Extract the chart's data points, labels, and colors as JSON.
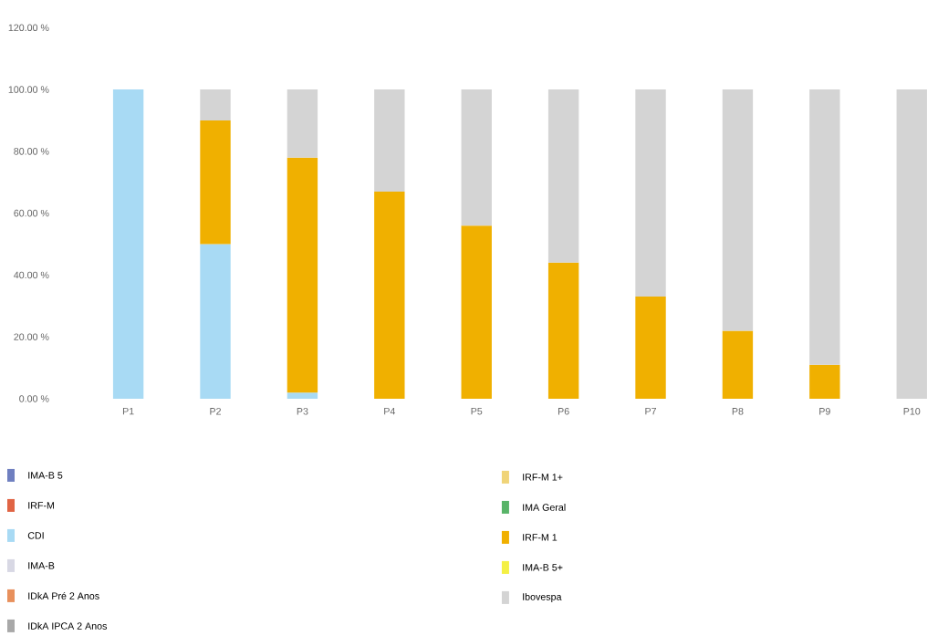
{
  "chart_data": {
    "type": "bar",
    "stacked": true,
    "legend": "bottom",
    "categories": [
      "P1",
      "P2",
      "P3",
      "P4",
      "P5",
      "P6",
      "P7",
      "P8",
      "P9",
      "P10"
    ],
    "ylim": [
      0,
      120
    ],
    "yticks": [
      {
        "value": 0,
        "label": "0.00 %"
      },
      {
        "value": 20,
        "label": "20.00 %"
      },
      {
        "value": 40,
        "label": "40.00 %"
      },
      {
        "value": 60,
        "label": "60.00 %"
      },
      {
        "value": 80,
        "label": "80.00 %"
      },
      {
        "value": 100,
        "label": "100.00 %"
      },
      {
        "value": 120,
        "label": "120.00 %"
      }
    ],
    "series": [
      {
        "name": "IMA-B 5",
        "color": "#6f7fc0",
        "values": [
          null,
          null,
          null,
          null,
          null,
          null,
          null,
          null,
          null,
          null
        ]
      },
      {
        "name": "IRF-M",
        "color": "#e06444",
        "values": [
          null,
          null,
          null,
          null,
          null,
          null,
          null,
          null,
          null,
          null
        ]
      },
      {
        "name": "CDI",
        "color": "#a8daf4",
        "values": [
          100,
          50,
          2,
          null,
          null,
          null,
          null,
          null,
          null,
          null
        ]
      },
      {
        "name": "IMA-B",
        "color": "#d8d8e4",
        "values": [
          null,
          null,
          null,
          null,
          null,
          null,
          null,
          null,
          null,
          null
        ]
      },
      {
        "name": "IDkA Pré 2 Anos",
        "color": "#e8905c",
        "values": [
          null,
          null,
          null,
          null,
          null,
          null,
          null,
          null,
          null,
          null
        ]
      },
      {
        "name": "IDkA IPCA 2 Anos",
        "color": "#a8a8a8",
        "values": [
          null,
          null,
          null,
          null,
          null,
          null,
          null,
          null,
          null,
          null
        ]
      },
      {
        "name": "IRF-M 1+",
        "color": "#f0d478",
        "values": [
          null,
          null,
          null,
          null,
          null,
          null,
          null,
          null,
          null,
          null
        ]
      },
      {
        "name": "IMA Geral",
        "color": "#58b468",
        "values": [
          null,
          null,
          null,
          null,
          null,
          null,
          null,
          null,
          null,
          null
        ]
      },
      {
        "name": "IRF-M 1",
        "color": "#f0b000",
        "values": [
          null,
          40,
          76,
          67,
          56,
          44,
          33,
          22,
          11,
          null
        ]
      },
      {
        "name": "IMA-B 5+",
        "color": "#f4f044",
        "values": [
          null,
          null,
          null,
          null,
          null,
          null,
          null,
          null,
          null,
          null
        ]
      },
      {
        "name": "Ibovespa",
        "color": "#d4d4d4",
        "values": [
          null,
          10,
          22,
          33,
          44,
          56,
          67,
          78,
          89,
          100
        ]
      }
    ]
  }
}
